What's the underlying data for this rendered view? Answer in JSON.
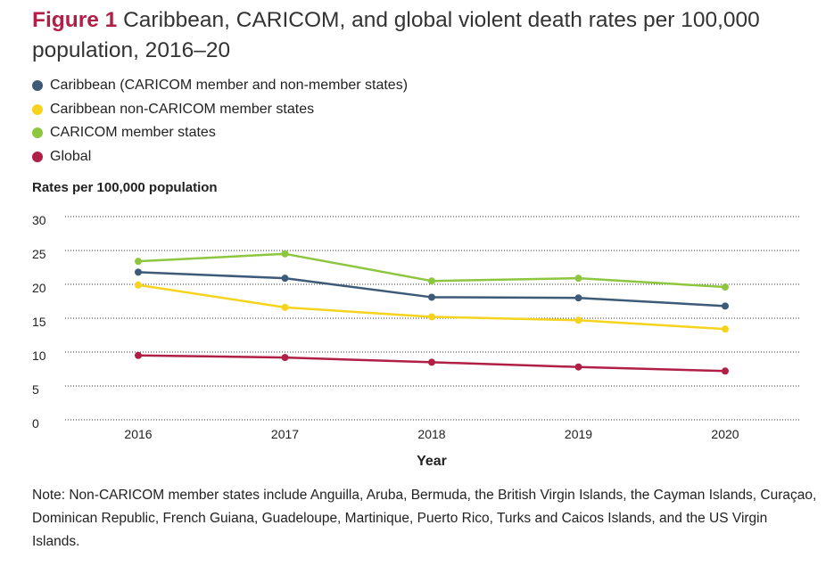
{
  "figure": {
    "label": "Figure 1",
    "title": " Caribbean, CARICOM, and global violent death rates per 100,000 population, 2016–20"
  },
  "note": "Note: Non-CARICOM member states include Anguilla, Aruba, Bermuda, the British Virgin Islands, the Cayman Islands, Curaçao, Dominican Republic, French Guiana, Guadeloupe, Martinique, Puerto Rico, Turks and Caicos Islands, and the US Virgin Islands.",
  "chart_data": {
    "type": "line",
    "ylabel": "Rates per 100,000 population",
    "xlabel": "Year",
    "x": [
      "2016",
      "2017",
      "2018",
      "2019",
      "2020"
    ],
    "ylim": [
      0,
      30
    ],
    "yticks": [
      0,
      5,
      10,
      15,
      20,
      25,
      30
    ],
    "grid": true,
    "grid_style": "dotted",
    "legend_position": "top-left",
    "series": [
      {
        "name": "Caribbean (CARICOM member and non-member states)",
        "color": "#3d5a78",
        "values": [
          21.8,
          20.9,
          18.1,
          18.0,
          16.8
        ]
      },
      {
        "name": "Caribbean non-CARICOM member states",
        "color": "#f6d31d",
        "values": [
          19.9,
          16.6,
          15.2,
          14.7,
          13.4
        ]
      },
      {
        "name": "CARICOM member states",
        "color": "#8dc63f",
        "values": [
          23.4,
          24.5,
          20.5,
          20.9,
          19.6
        ]
      },
      {
        "name": "Global",
        "color": "#b01f45",
        "values": [
          9.5,
          9.2,
          8.5,
          7.8,
          7.2
        ]
      }
    ]
  }
}
